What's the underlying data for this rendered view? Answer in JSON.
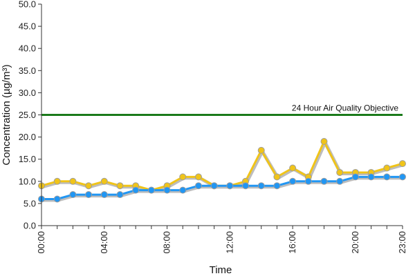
{
  "chart_data": {
    "type": "line",
    "title": "",
    "xlabel": "Time",
    "ylabel": "Concentration (µg/m³)",
    "ylim": [
      0,
      50
    ],
    "y_ticks": [
      "0.0",
      "5.0",
      "10.0",
      "15.0",
      "20.0",
      "25.0",
      "30.0",
      "35.0",
      "40.0",
      "45.0",
      "50.0"
    ],
    "x_tick_labels": [
      "00:00",
      "04:00",
      "08:00",
      "12:00",
      "16:00",
      "20:00",
      "23:00"
    ],
    "x_tick_hours": [
      0,
      4,
      8,
      12,
      16,
      20,
      23
    ],
    "x_hours": [
      0,
      1,
      2,
      3,
      4,
      5,
      6,
      7,
      8,
      9,
      10,
      11,
      12,
      13,
      14,
      15,
      16,
      17,
      18,
      19,
      20,
      21,
      22,
      23
    ],
    "grid": false,
    "legend": "none",
    "series": [
      {
        "color": "#f0c419",
        "values": [
          9,
          10,
          10,
          9,
          10,
          9,
          9,
          8,
          9,
          11,
          11,
          9,
          9,
          10,
          17,
          11,
          13,
          11,
          19,
          12,
          12,
          12,
          13,
          14
        ]
      },
      {
        "color": "#2196f3",
        "values": [
          6,
          6,
          7,
          7,
          7,
          7,
          8,
          8,
          8,
          8,
          9,
          9,
          9,
          9,
          9,
          9,
          10,
          10,
          10,
          10,
          11,
          11,
          11,
          11
        ]
      }
    ],
    "reference_line": {
      "value": 25,
      "label": "24 Hour Air Quality Objective",
      "color": "#1a7a1a"
    }
  }
}
